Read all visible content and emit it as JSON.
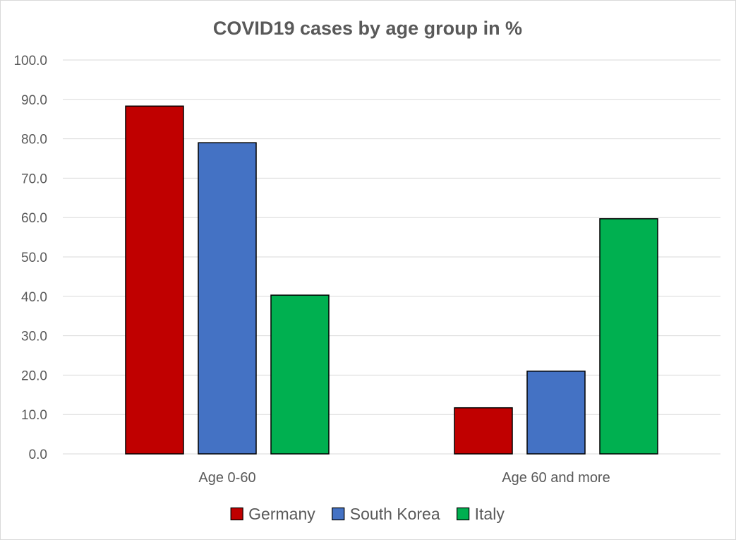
{
  "chart_data": {
    "type": "bar",
    "title": "COVID19 cases by age group in %",
    "xlabel": "",
    "ylabel": "",
    "categories": [
      "Age 0-60",
      "Age 60 and more"
    ],
    "series": [
      {
        "name": "Germany",
        "color": "#C00000",
        "values": [
          88.3,
          11.7
        ]
      },
      {
        "name": "South Korea",
        "color": "#4472C4",
        "values": [
          79.0,
          21.0
        ]
      },
      {
        "name": "Italy",
        "color": "#00B050",
        "values": [
          40.3,
          59.7
        ]
      }
    ],
    "ylim": [
      0,
      100
    ],
    "yticks": [
      "0.0",
      "10.0",
      "20.0",
      "30.0",
      "40.0",
      "50.0",
      "60.0",
      "70.0",
      "80.0",
      "90.0",
      "100.0"
    ],
    "grid": true,
    "legend_position": "bottom"
  }
}
